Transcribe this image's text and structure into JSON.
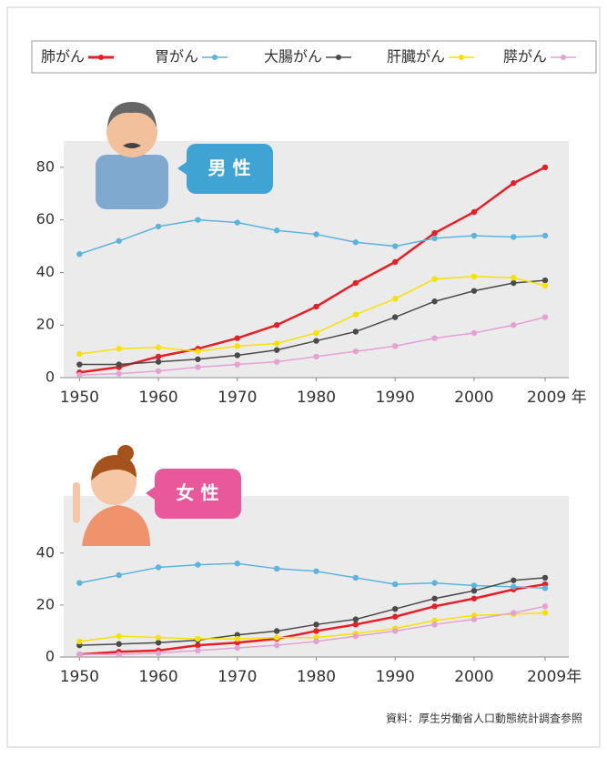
{
  "chart_data": [
    {
      "type": "line",
      "annotation": "男 性",
      "x": [
        1950,
        1955,
        1960,
        1965,
        1970,
        1975,
        1980,
        1985,
        1990,
        1995,
        2000,
        2005,
        2009
      ],
      "xlim": [
        1948,
        2012
      ],
      "xticks": [
        1950,
        1960,
        1970,
        1980,
        1990,
        2000,
        {
          "value": 2009,
          "label": "2009 年"
        }
      ],
      "ylim": [
        0,
        90
      ],
      "yticks": [
        0,
        20,
        40,
        60,
        80
      ],
      "series": [
        {
          "name": "肺がん",
          "color": "#e41f26",
          "values": [
            2,
            4,
            8,
            11,
            15,
            20,
            27,
            36,
            44,
            55,
            63,
            74,
            80
          ]
        },
        {
          "name": "胃がん",
          "color": "#5ab4dc",
          "values": [
            47,
            52,
            57.5,
            60,
            59,
            56,
            54.5,
            51.5,
            50,
            53,
            54,
            53.5,
            54
          ]
        },
        {
          "name": "大腸がん",
          "color": "#4a4a4a",
          "values": [
            5,
            5,
            6,
            7,
            8.5,
            10.5,
            14,
            17.5,
            23,
            29,
            33,
            36,
            37
          ]
        },
        {
          "name": "肝臓がん",
          "color": "#f6e200",
          "values": [
            9,
            11,
            11.5,
            10,
            12,
            13,
            17,
            24,
            30,
            37.5,
            38.5,
            38,
            35
          ]
        },
        {
          "name": "膵がん",
          "color": "#e3a2d3",
          "values": [
            1,
            1.5,
            2.5,
            4,
            5,
            6,
            8,
            10,
            12,
            15,
            17,
            20,
            23
          ]
        }
      ]
    },
    {
      "type": "line",
      "annotation": "女 性",
      "x": [
        1950,
        1955,
        1960,
        1965,
        1970,
        1975,
        1980,
        1985,
        1990,
        1995,
        2000,
        2005,
        2009
      ],
      "xlim": [
        1948,
        2012
      ],
      "xticks": [
        1950,
        1960,
        1970,
        1980,
        1990,
        2000,
        {
          "value": 2009,
          "label": "2009年"
        }
      ],
      "ylim": [
        0,
        62
      ],
      "yticks": [
        0,
        20,
        40
      ],
      "series": [
        {
          "name": "肺がん",
          "color": "#e41f26",
          "values": [
            1,
            2,
            2.5,
            4.5,
            5.5,
            7,
            10,
            12.5,
            15.5,
            19.5,
            22.5,
            26,
            28
          ]
        },
        {
          "name": "胃がん",
          "color": "#5ab4dc",
          "values": [
            28.5,
            31.5,
            34.5,
            35.5,
            36,
            34,
            33,
            30.5,
            28,
            28.5,
            27.5,
            27,
            26.5
          ]
        },
        {
          "name": "大腸がん",
          "color": "#4a4a4a",
          "values": [
            4.5,
            5,
            5.5,
            6.5,
            8.5,
            10,
            12.5,
            14.5,
            18.5,
            22.5,
            25.5,
            29.5,
            30.5
          ]
        },
        {
          "name": "肝臓がん",
          "color": "#f6e200",
          "values": [
            6,
            8,
            7.5,
            7,
            7,
            7.5,
            7.5,
            9,
            11,
            14,
            16,
            16.5,
            17
          ]
        },
        {
          "name": "膵がん",
          "color": "#e3a2d3",
          "values": [
            1,
            1,
            1.5,
            2.5,
            3.5,
            4.5,
            6,
            8,
            10,
            12.5,
            14.5,
            17,
            19.5
          ]
        }
      ]
    }
  ],
  "source": "資料：厚生労働省人口動態統計調査参照"
}
